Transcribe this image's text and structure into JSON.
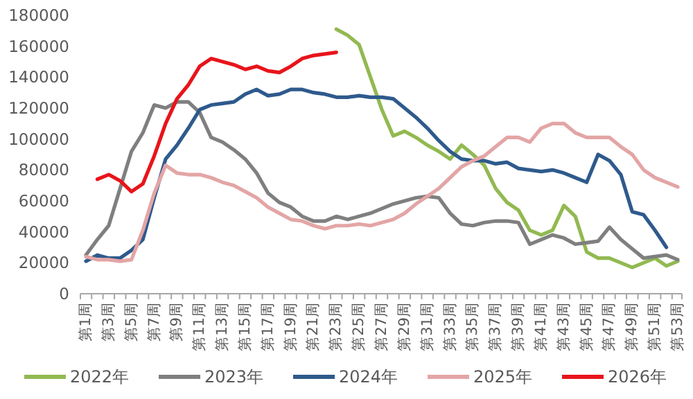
{
  "chart_data": {
    "type": "line",
    "categories": [
      "第1周",
      null,
      "第3周",
      null,
      "第5周",
      null,
      "第7周",
      null,
      "第9周",
      null,
      "第11周",
      null,
      "第13周",
      null,
      "第15周",
      null,
      "第17周",
      null,
      "第19周",
      null,
      "第21周",
      null,
      "第23周",
      null,
      "第25周",
      null,
      "第27周",
      null,
      "第29周",
      null,
      "第31周",
      null,
      "第33周",
      null,
      "第35周",
      null,
      "第37周",
      null,
      "第39周",
      null,
      "第41周",
      null,
      "第43周",
      null,
      "第45周",
      null,
      "第47周",
      null,
      "第49周",
      null,
      "第51周",
      null,
      "第53周"
    ],
    "ylim": [
      0,
      180000
    ],
    "yticks": [
      0,
      20000,
      40000,
      60000,
      80000,
      100000,
      120000,
      140000,
      160000,
      180000
    ],
    "grid": false,
    "legend": "bottom",
    "marker": "none",
    "line_style": "solid",
    "series": [
      {
        "name": "2022年",
        "color": "#92b951",
        "values": [
          null,
          null,
          null,
          null,
          null,
          null,
          null,
          null,
          null,
          null,
          null,
          null,
          null,
          null,
          null,
          null,
          null,
          null,
          null,
          null,
          null,
          null,
          171000,
          167000,
          161000,
          140000,
          119000,
          102000,
          105000,
          101000,
          96000,
          92000,
          87000,
          96000,
          90000,
          83000,
          68000,
          59000,
          54000,
          41000,
          38000,
          41000,
          57000,
          50000,
          27000,
          23000,
          23000,
          20000,
          17000,
          20000,
          23000,
          18000,
          21000
        ]
      },
      {
        "name": "2023年",
        "color": "#7f7f7f",
        "values": [
          25000,
          35000,
          44000,
          68000,
          92000,
          104000,
          122000,
          120000,
          124000,
          124000,
          117000,
          101000,
          98000,
          93000,
          87000,
          78000,
          65000,
          59000,
          56000,
          50000,
          47000,
          47000,
          50000,
          48000,
          50000,
          52000,
          55000,
          58000,
          60000,
          62000,
          63000,
          62000,
          52000,
          45000,
          44000,
          46000,
          47000,
          47000,
          46000,
          32000,
          35000,
          38000,
          36000,
          32000,
          33000,
          34000,
          43000,
          35000,
          29000,
          23000,
          24000,
          25000,
          22000
        ]
      },
      {
        "name": "2024年",
        "color": "#2e5a8c",
        "values": [
          21000,
          25000,
          23000,
          23000,
          28000,
          35000,
          62000,
          87000,
          96000,
          107000,
          119000,
          122000,
          123000,
          124000,
          129000,
          132000,
          128000,
          129000,
          132000,
          132000,
          130000,
          129000,
          127000,
          127000,
          128000,
          127000,
          127000,
          126000,
          120000,
          114000,
          107000,
          99000,
          92000,
          87000,
          86000,
          86000,
          84000,
          85000,
          81000,
          80000,
          79000,
          80000,
          78000,
          75000,
          72000,
          90000,
          86000,
          77000,
          53000,
          51000,
          41000,
          30000,
          null
        ]
      },
      {
        "name": "2025年",
        "color": "#e3a5a5",
        "values": [
          24000,
          22000,
          22000,
          21000,
          22000,
          41000,
          65000,
          83000,
          78000,
          77000,
          77000,
          75000,
          72000,
          70000,
          66000,
          62000,
          56000,
          52000,
          48000,
          47000,
          44000,
          42000,
          44000,
          44000,
          45000,
          44000,
          46000,
          48000,
          52000,
          58000,
          63000,
          68000,
          75000,
          82000,
          86000,
          89000,
          95000,
          101000,
          101000,
          98000,
          107000,
          110000,
          110000,
          104000,
          101000,
          101000,
          101000,
          95000,
          90000,
          80000,
          75000,
          72000,
          69000
        ]
      },
      {
        "name": "2026年",
        "color": "#e8141b",
        "values": [
          null,
          74000,
          77000,
          73000,
          66000,
          71000,
          89000,
          110000,
          126000,
          135000,
          147000,
          152000,
          150000,
          148000,
          145000,
          147000,
          144000,
          143000,
          147000,
          152000,
          154000,
          155000,
          156000,
          null,
          null,
          null,
          null,
          null,
          null,
          null,
          null,
          null,
          null,
          null,
          null,
          null,
          null,
          null,
          null,
          null,
          null,
          null,
          null,
          null,
          null,
          null,
          null,
          null,
          null,
          null,
          null,
          null,
          null
        ]
      }
    ]
  }
}
